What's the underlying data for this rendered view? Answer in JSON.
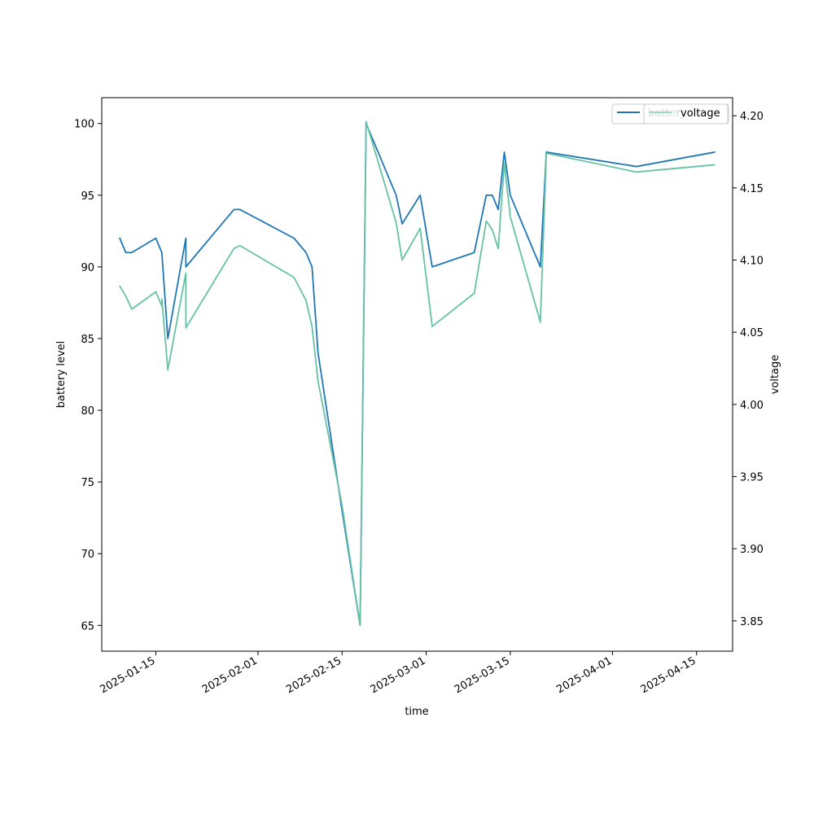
{
  "chart_data": {
    "type": "line",
    "xlabel": "time",
    "ylabel_left": "battery level",
    "ylabel_right": "voltage",
    "x_range": [
      "2025-01-06",
      "2025-04-21"
    ],
    "ylim_left": [
      63.2,
      101.8
    ],
    "ylim_right": [
      3.829,
      4.2125
    ],
    "xticks": [
      "2025-01-15",
      "2025-02-01",
      "2025-02-15",
      "2025-03-01",
      "2025-03-15",
      "2025-04-01",
      "2025-04-15"
    ],
    "yticks_left": [
      65,
      70,
      75,
      80,
      85,
      90,
      95,
      100
    ],
    "yticks_right": [
      "3.85",
      "3.90",
      "3.95",
      "4.00",
      "4.05",
      "4.10",
      "4.15",
      "4.20"
    ],
    "grid": false,
    "legend_position": "top-right",
    "series": [
      {
        "name": "battery level",
        "legend_text": "battery",
        "axis": "left",
        "color": "#1f77b4",
        "points": [
          [
            "2025-01-09",
            92
          ],
          [
            "2025-01-10",
            91
          ],
          [
            "2025-01-11",
            91
          ],
          [
            "2025-01-15",
            92
          ],
          [
            "2025-01-16",
            91
          ],
          [
            "2025-01-16",
            91
          ],
          [
            "2025-01-17",
            85
          ],
          [
            "2025-01-20",
            92
          ],
          [
            "2025-01-20",
            90
          ],
          [
            "2025-01-28",
            94
          ],
          [
            "2025-01-29",
            94
          ],
          [
            "2025-02-07",
            92
          ],
          [
            "2025-02-09",
            91
          ],
          [
            "2025-02-10",
            90
          ],
          [
            "2025-02-11",
            84
          ],
          [
            "2025-02-15",
            73
          ],
          [
            "2025-02-18",
            65
          ],
          [
            "2025-02-19",
            100
          ],
          [
            "2025-02-23",
            96
          ],
          [
            "2025-02-24",
            95
          ],
          [
            "2025-02-25",
            93
          ],
          [
            "2025-02-28",
            95
          ],
          [
            "2025-03-02",
            90
          ],
          [
            "2025-03-09",
            91
          ],
          [
            "2025-03-11",
            95
          ],
          [
            "2025-03-12",
            95
          ],
          [
            "2025-03-13",
            94
          ],
          [
            "2025-03-14",
            98
          ],
          [
            "2025-03-15",
            95
          ],
          [
            "2025-03-20",
            90
          ],
          [
            "2025-03-21",
            98
          ],
          [
            "2025-04-05",
            97
          ],
          [
            "2025-04-18",
            98
          ]
        ]
      },
      {
        "name": "voltage",
        "legend_text": "voltage",
        "axis": "right",
        "color": "#66c2a5",
        "points": [
          [
            "2025-01-09",
            4.082
          ],
          [
            "2025-01-10",
            4.075
          ],
          [
            "2025-01-11",
            4.066
          ],
          [
            "2025-01-15",
            4.078
          ],
          [
            "2025-01-16",
            4.068
          ],
          [
            "2025-01-16",
            4.073
          ],
          [
            "2025-01-17",
            4.024
          ],
          [
            "2025-01-20",
            4.091
          ],
          [
            "2025-01-20",
            4.053
          ],
          [
            "2025-01-28",
            4.108
          ],
          [
            "2025-01-29",
            4.11
          ],
          [
            "2025-02-07",
            4.088
          ],
          [
            "2025-02-09",
            4.072
          ],
          [
            "2025-02-10",
            4.054
          ],
          [
            "2025-02-11",
            4.016
          ],
          [
            "2025-02-15",
            3.93
          ],
          [
            "2025-02-18",
            3.847
          ],
          [
            "2025-02-19",
            4.196
          ],
          [
            "2025-02-23",
            4.14
          ],
          [
            "2025-02-24",
            4.126
          ],
          [
            "2025-02-25",
            4.1
          ],
          [
            "2025-02-28",
            4.122
          ],
          [
            "2025-03-02",
            4.054
          ],
          [
            "2025-03-09",
            4.077
          ],
          [
            "2025-03-11",
            4.127
          ],
          [
            "2025-03-12",
            4.121
          ],
          [
            "2025-03-13",
            4.108
          ],
          [
            "2025-03-14",
            4.167
          ],
          [
            "2025-03-15",
            4.13
          ],
          [
            "2025-03-20",
            4.057
          ],
          [
            "2025-03-21",
            4.174
          ],
          [
            "2025-04-05",
            4.161
          ],
          [
            "2025-04-18",
            4.166
          ]
        ]
      }
    ]
  }
}
